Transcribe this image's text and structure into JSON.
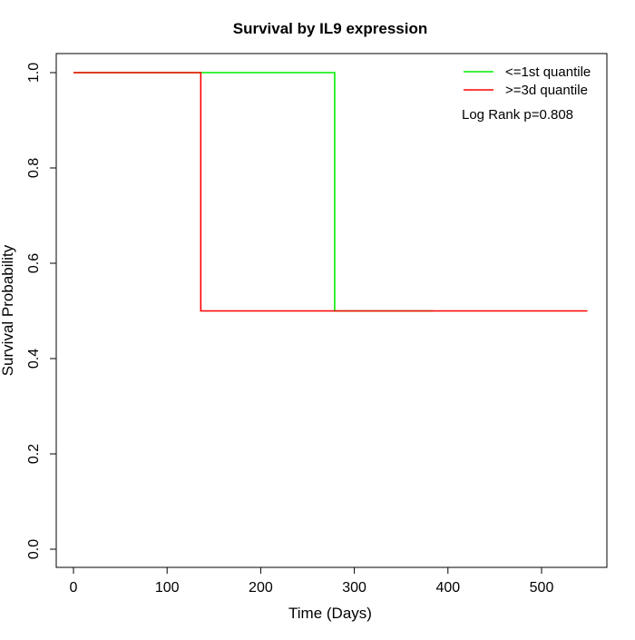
{
  "chart_data": {
    "type": "line",
    "title": "Survival by IL9 expression",
    "xlabel": "Time (Days)",
    "ylabel": "Survival Probability",
    "xlim": [
      0,
      550
    ],
    "ylim": [
      0,
      1
    ],
    "xticks": [
      "0",
      "100",
      "200",
      "300",
      "400",
      "500"
    ],
    "yticks": [
      "0.0",
      "0.2",
      "0.4",
      "0.6",
      "0.8",
      "1.0"
    ],
    "grid": false,
    "legend_position": "top-right",
    "annotation": "Log Rank p=0.808",
    "series": [
      {
        "name": "<=1st quantile",
        "color": "#00ee00",
        "step": true,
        "x": [
          0,
          279,
          279,
          384
        ],
        "y": [
          1.0,
          1.0,
          0.5,
          0.5
        ]
      },
      {
        "name": ">=3d quantile",
        "color": "#ff0000",
        "step": true,
        "x": [
          0,
          136,
          136,
          549
        ],
        "y": [
          1.0,
          1.0,
          0.5,
          0.5
        ]
      }
    ]
  }
}
